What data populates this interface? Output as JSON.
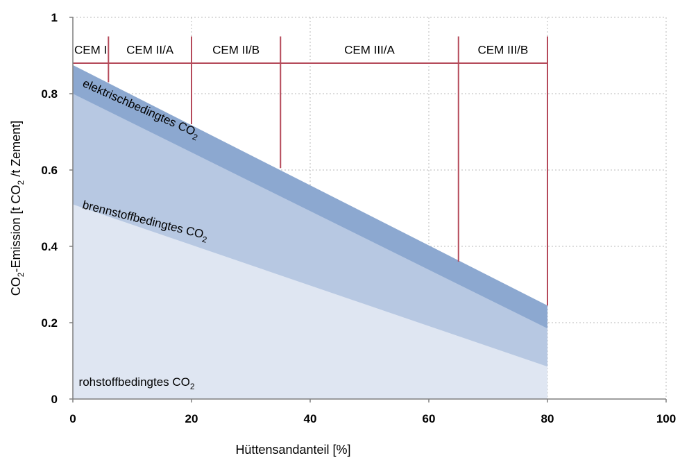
{
  "chart_data": {
    "type": "area",
    "xlabel": "Hüttensandanteil [%]",
    "ylabel": {
      "pre": "CO",
      "sub1": "2",
      "mid": "-Emission [t CO",
      "sub2": "2",
      "post": " /t Zement]"
    },
    "xlim": [
      0,
      100
    ],
    "ylim": [
      0,
      1
    ],
    "x_ticks": [
      "0",
      "20",
      "40",
      "60",
      "80",
      "100"
    ],
    "y_ticks": [
      "0",
      "0.2",
      "0.4",
      "0.6",
      "0.8",
      "1"
    ],
    "grid": true,
    "x": [
      0,
      80
    ],
    "series": [
      {
        "name": "rohstoffbedingtes CO2",
        "label_main": "rohstoffbedingtes CO",
        "label_sub": "2",
        "color": "#dfe6f2",
        "values": [
          0.51,
          0.085
        ],
        "label_x": 1,
        "label_y": 0.035,
        "label_angle_deg": 0
      },
      {
        "name": "brennstoffbedingtes CO2",
        "label_main": "brennstoffbedingtes CO",
        "label_sub": "2",
        "color": "#b7c8e2",
        "values": [
          0.8,
          0.185
        ],
        "label_x": 1.5,
        "label_y": 0.5,
        "label_angle_deg": 14
      },
      {
        "name": "elektrischbedingtes CO2",
        "label_main": "elektrischbedingtes CO",
        "label_sub": "2",
        "color": "#8ca8d0",
        "values": [
          0.875,
          0.245
        ],
        "label_x": 1.5,
        "label_y": 0.82,
        "label_angle_deg": 24
      }
    ],
    "cem_band": {
      "y": 0.88,
      "top": 0.95,
      "label_y": 0.905,
      "color": "#b54a5a",
      "classes": [
        {
          "label": "CEM I",
          "x0": 0,
          "x1": 6
        },
        {
          "label": "CEM II/A",
          "x0": 6,
          "x1": 20
        },
        {
          "label": "CEM II/B",
          "x0": 20,
          "x1": 35
        },
        {
          "label": "CEM III/A",
          "x0": 35,
          "x1": 65
        },
        {
          "label": "CEM III/B",
          "x0": 65,
          "x1": 80
        }
      ],
      "dividers": [
        {
          "x": 6,
          "y_bottom": 0.83
        },
        {
          "x": 20,
          "y_bottom": 0.72
        },
        {
          "x": 35,
          "y_bottom": 0.605
        },
        {
          "x": 65,
          "y_bottom": 0.36
        },
        {
          "x": 80,
          "y_bottom": 0.245
        }
      ]
    }
  }
}
